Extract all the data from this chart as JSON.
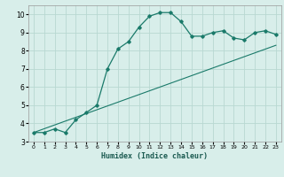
{
  "xlabel": "Humidex (Indice chaleur)",
  "ylabel": "",
  "background_color": "#d8eeea",
  "grid_color": "#b8d8d2",
  "line_color": "#1a7a6a",
  "xlim": [
    -0.5,
    23.5
  ],
  "ylim": [
    3,
    10.5
  ],
  "xticks": [
    0,
    1,
    2,
    3,
    4,
    5,
    6,
    7,
    8,
    9,
    10,
    11,
    12,
    13,
    14,
    15,
    16,
    17,
    18,
    19,
    20,
    21,
    22,
    23
  ],
  "yticks": [
    3,
    4,
    5,
    6,
    7,
    8,
    9,
    10
  ],
  "curve1_x": [
    0,
    1,
    2,
    3,
    4,
    5,
    6,
    7,
    8,
    9,
    10,
    11,
    12,
    13,
    14,
    15,
    16,
    17,
    18,
    19,
    20,
    21,
    22,
    23
  ],
  "curve1_y": [
    3.5,
    3.5,
    3.7,
    3.5,
    4.2,
    4.6,
    5.0,
    7.0,
    8.1,
    8.5,
    9.3,
    9.9,
    10.1,
    10.1,
    9.6,
    8.8,
    8.8,
    9.0,
    9.1,
    8.7,
    8.6,
    9.0,
    9.1,
    8.9
  ],
  "curve2_x": [
    0,
    23
  ],
  "curve2_y": [
    3.5,
    8.3
  ],
  "figsize": [
    3.2,
    2.0
  ],
  "dpi": 100
}
